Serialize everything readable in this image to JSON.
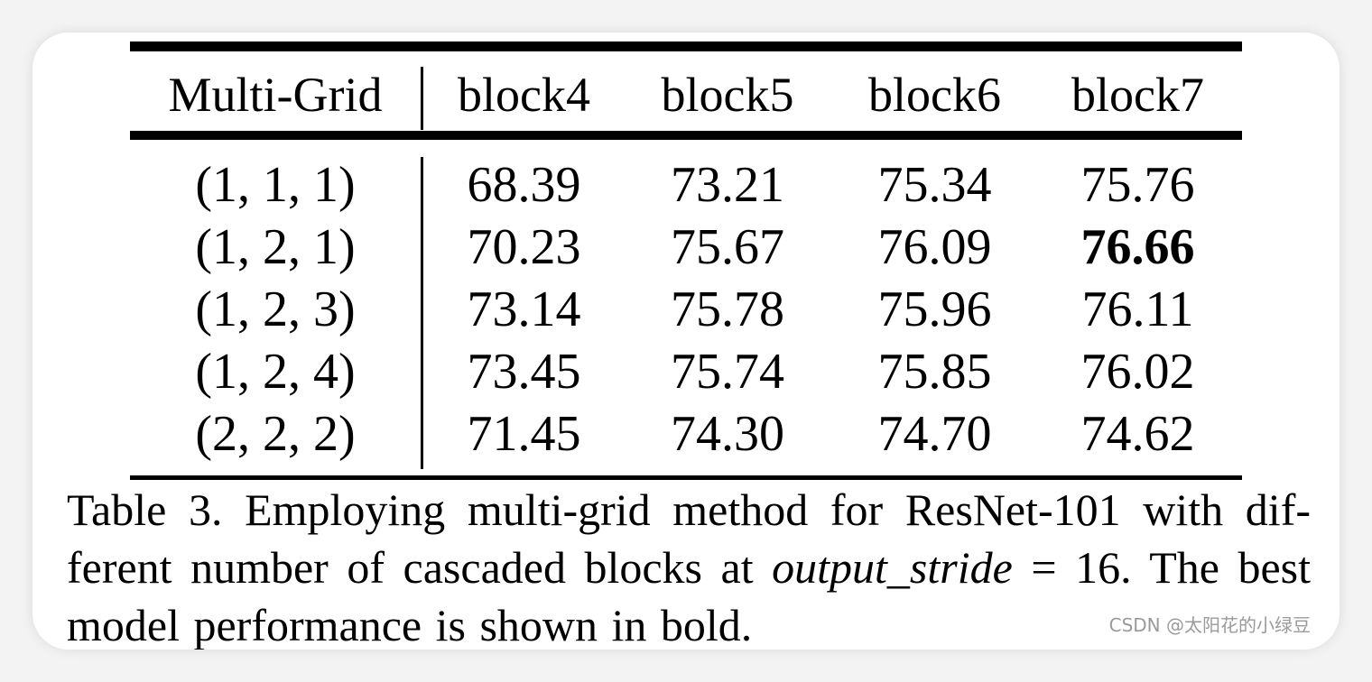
{
  "table": {
    "headers": [
      "Multi-Grid",
      "block4",
      "block5",
      "block6",
      "block7"
    ],
    "rows": [
      {
        "grid": "(1, 1, 1)",
        "values": [
          "68.39",
          "73.21",
          "75.34",
          "75.76"
        ]
      },
      {
        "grid": "(1, 2, 1)",
        "values": [
          "70.23",
          "75.67",
          "76.09",
          "76.66"
        ]
      },
      {
        "grid": "(1, 2, 3)",
        "values": [
          "73.14",
          "75.78",
          "75.96",
          "76.11"
        ]
      },
      {
        "grid": "(1, 2, 4)",
        "values": [
          "73.45",
          "75.74",
          "75.85",
          "76.02"
        ]
      },
      {
        "grid": "(2, 2, 2)",
        "values": [
          "71.45",
          "74.30",
          "74.70",
          "74.62"
        ]
      }
    ],
    "best_cell": "76.66"
  },
  "caption": {
    "line1": "Table 3. Employing multi-grid method for ResNet-101 with dif-",
    "line2_before": "ferent number of cascaded blocks at ",
    "line2_italic": "output_stride",
    "line2_after": " = 16. The best",
    "line3": "model performance is shown in bold."
  },
  "watermark": "CSDN @太阳花的小绿豆"
}
